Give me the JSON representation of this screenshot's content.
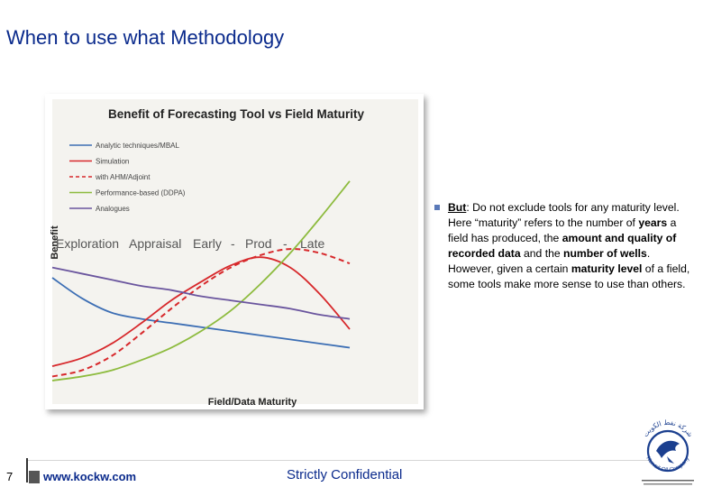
{
  "slide": {
    "title": "When to use what Methodology",
    "page_number": "7",
    "website": "www.kockw.com",
    "confidential": "Strictly Confidential"
  },
  "bullet": {
    "lead": "But",
    "t1": ": Do not exclude tools for any maturity level. Here “maturity” refers to the number of ",
    "b1": "years",
    "t2": " a field has produced, the ",
    "b2": "amount and quality of recorded data",
    "t3": " and the ",
    "b3": "number of wells",
    "t4": ". However, given a certain ",
    "b4": "maturity level",
    "t5": " of a field, some tools make more sense to use than others."
  },
  "logo": {
    "brand_text": "Kuwait Oil Company",
    "arabic_text": "شركة نفط الكويت"
  },
  "chart_data": {
    "type": "line",
    "title": "Benefit of Forecasting Tool vs Field Maturity",
    "xlabel": "Field/Data Maturity",
    "ylabel": "Benefit",
    "stage_labels": [
      "Exploration",
      "Appraisal",
      "Early",
      "-",
      "Prod",
      "-",
      "Late"
    ],
    "legend_position": "top-left",
    "grid": false,
    "x": [
      0,
      0.1,
      0.2,
      0.3,
      0.4,
      0.5,
      0.6,
      0.7,
      0.8,
      0.9,
      1.0
    ],
    "ylim": [
      0,
      1
    ],
    "series": [
      {
        "name": "Analytic techniques/MBAL",
        "color": "#3c6eb4",
        "dash": false,
        "values": [
          0.5,
          0.4,
          0.33,
          0.3,
          0.28,
          0.26,
          0.24,
          0.22,
          0.2,
          0.18,
          0.16
        ]
      },
      {
        "name": "Simulation",
        "color": "#d7282b",
        "dash": false,
        "values": [
          0.07,
          0.11,
          0.18,
          0.28,
          0.39,
          0.48,
          0.56,
          0.6,
          0.55,
          0.42,
          0.25
        ]
      },
      {
        "name": "with AHM/Adjoint",
        "color": "#d7282b",
        "dash": true,
        "values": [
          0.02,
          0.05,
          0.12,
          0.23,
          0.35,
          0.46,
          0.55,
          0.61,
          0.64,
          0.62,
          0.57
        ]
      },
      {
        "name": "Performance-based (DDPA)",
        "color": "#8dbb3e",
        "dash": false,
        "values": [
          0.0,
          0.02,
          0.05,
          0.1,
          0.16,
          0.24,
          0.34,
          0.47,
          0.62,
          0.79,
          0.97
        ]
      },
      {
        "name": "Analogues",
        "color": "#6a559e",
        "dash": false,
        "values": [
          0.55,
          0.52,
          0.49,
          0.46,
          0.44,
          0.41,
          0.39,
          0.37,
          0.35,
          0.32,
          0.3
        ]
      }
    ]
  }
}
